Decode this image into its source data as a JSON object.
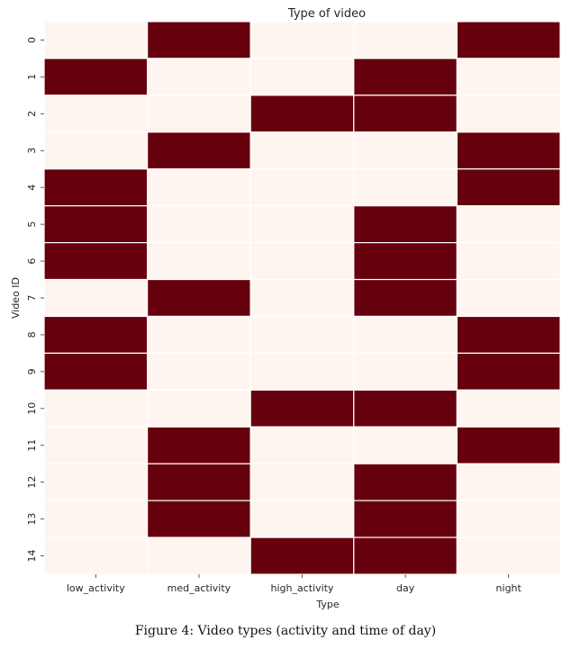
{
  "chart_data": {
    "type": "heatmap",
    "title": "Type of video",
    "xlabel": "Type",
    "ylabel": "Video ID",
    "x_categories": [
      "low_activity",
      "med_activity",
      "high_activity",
      "day",
      "night"
    ],
    "y_categories": [
      "0",
      "1",
      "2",
      "3",
      "4",
      "5",
      "6",
      "7",
      "8",
      "9",
      "10",
      "11",
      "12",
      "13",
      "14"
    ],
    "values": [
      [
        0,
        1,
        0,
        0,
        1
      ],
      [
        1,
        0,
        0,
        1,
        0
      ],
      [
        0,
        0,
        1,
        1,
        0
      ],
      [
        0,
        1,
        0,
        0,
        1
      ],
      [
        1,
        0,
        0,
        0,
        1
      ],
      [
        1,
        0,
        0,
        1,
        0
      ],
      [
        1,
        0,
        0,
        1,
        0
      ],
      [
        0,
        1,
        0,
        1,
        0
      ],
      [
        1,
        0,
        0,
        0,
        1
      ],
      [
        1,
        0,
        0,
        0,
        1
      ],
      [
        0,
        0,
        1,
        1,
        0
      ],
      [
        0,
        1,
        0,
        0,
        1
      ],
      [
        0,
        1,
        0,
        1,
        0
      ],
      [
        0,
        1,
        0,
        1,
        0
      ],
      [
        0,
        0,
        1,
        1,
        0
      ]
    ],
    "colormap": {
      "0": "#fff5f0",
      "1": "#67000d"
    },
    "cell_border_color": "#ffffff",
    "colorbar": false
  },
  "caption": "Figure 4: Video types (activity and time of day)"
}
